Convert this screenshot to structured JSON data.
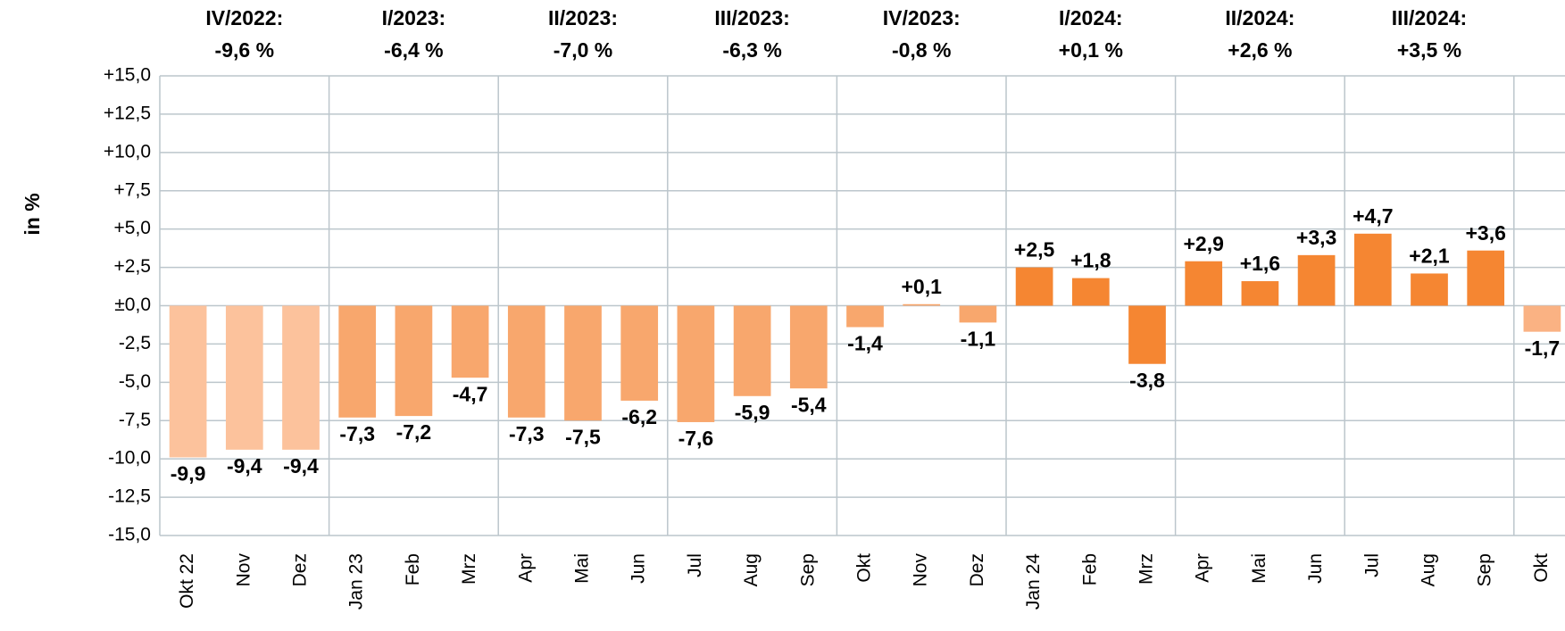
{
  "chart_data": {
    "type": "bar",
    "y_axis_label": "in %",
    "categories": [
      "Okt 22",
      "Nov",
      "Dez",
      "Jan 23",
      "Feb",
      "Mrz",
      "Apr",
      "Mai",
      "Jun",
      "Jul",
      "Aug",
      "Sep",
      "Okt",
      "Nov",
      "Dez",
      "Jan 24",
      "Feb",
      "Mrz",
      "Apr",
      "Mai",
      "Jun",
      "Jul",
      "Aug",
      "Sep",
      "Okt"
    ],
    "values": [
      -9.9,
      -9.4,
      -9.4,
      -7.3,
      -7.2,
      -4.7,
      -7.3,
      -7.5,
      -6.2,
      -7.6,
      -5.9,
      -5.4,
      -1.4,
      0.1,
      -1.1,
      2.5,
      1.8,
      -3.8,
      2.9,
      1.6,
      3.3,
      4.7,
      2.1,
      3.6,
      -1.7
    ],
    "value_labels": [
      "-9,9",
      "-9,4",
      "-9,4",
      "-7,3",
      "-7,2",
      "-4,7",
      "-7,3",
      "-7,5",
      "-6,2",
      "-7,6",
      "-5,9",
      "-5,4",
      "-1,4",
      "+0,1",
      "-1,1",
      "+2,5",
      "+1,8",
      "-3,8",
      "+2,9",
      "+1,6",
      "+3,3",
      "+4,7",
      "+2,1",
      "+3,6",
      "-1,7"
    ],
    "colors": [
      "#fcc29c",
      "#fcc29c",
      "#fcc29c",
      "#f8a76d",
      "#f8a76d",
      "#f8a76d",
      "#f8a76d",
      "#f8a76d",
      "#f8a76d",
      "#f8a76d",
      "#f8a76d",
      "#f8a76d",
      "#f8a76d",
      "#f8a76d",
      "#f8a76d",
      "#f58632",
      "#f58632",
      "#f58632",
      "#f58632",
      "#f58632",
      "#f58632",
      "#f58632",
      "#f58632",
      "#f58632",
      "#fab283"
    ],
    "quarters": [
      {
        "period": "IV/2022:",
        "change": "-9,6 %"
      },
      {
        "period": "I/2023:",
        "change": "-6,4 %"
      },
      {
        "period": "II/2023:",
        "change": "-7,0 %"
      },
      {
        "period": "III/2023:",
        "change": "-6,3 %"
      },
      {
        "period": "IV/2023:",
        "change": "-0,8 %"
      },
      {
        "period": "I/2024:",
        "change": "+0,1 %"
      },
      {
        "period": "II/2024:",
        "change": "+2,6 %"
      },
      {
        "period": "III/2024:",
        "change": "+3,5 %"
      }
    ],
    "ylim": [
      -15,
      15
    ],
    "yticks": [
      {
        "value": -15,
        "label": "-15,0"
      },
      {
        "value": -12.5,
        "label": "-12,5"
      },
      {
        "value": -10,
        "label": "-10,0"
      },
      {
        "value": -7.5,
        "label": "-7,5"
      },
      {
        "value": -5,
        "label": "-5,0"
      },
      {
        "value": -2.5,
        "label": "-2,5"
      },
      {
        "value": 0,
        "label": "±0,0"
      },
      {
        "value": 2.5,
        "label": "+2,5"
      },
      {
        "value": 5,
        "label": "+5,0"
      },
      {
        "value": 7.5,
        "label": "+7,5"
      },
      {
        "value": 10,
        "label": "+10,0"
      },
      {
        "value": 12.5,
        "label": "+12,5"
      },
      {
        "value": 15,
        "label": "+15,0"
      }
    ],
    "grid": true
  }
}
